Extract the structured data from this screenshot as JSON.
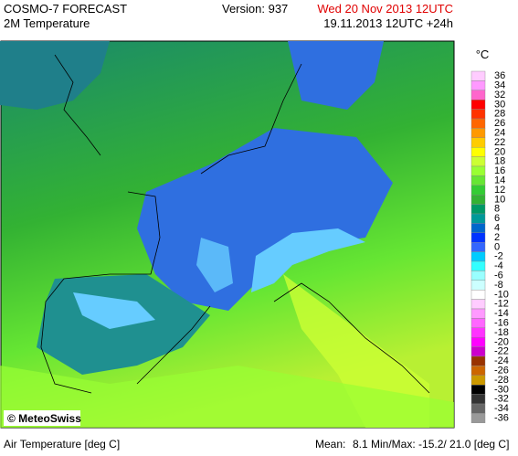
{
  "header": {
    "title": "COSMO-7 FORECAST",
    "subtitle": "2M Temperature",
    "version": "Version: 937",
    "valid_time": "Wed 20 Nov 2013 12UTC",
    "run_time": "19.11.2013 12UTC +24h"
  },
  "legend": {
    "unit": "°C",
    "entries": [
      {
        "value": 36,
        "color": "#ffccff"
      },
      {
        "value": 34,
        "color": "#ff99ff"
      },
      {
        "value": 32,
        "color": "#ff66cc"
      },
      {
        "value": 30,
        "color": "#ff0000"
      },
      {
        "value": 28,
        "color": "#ff3300"
      },
      {
        "value": 26,
        "color": "#ff6600"
      },
      {
        "value": 24,
        "color": "#ff9900"
      },
      {
        "value": 22,
        "color": "#ffcc00"
      },
      {
        "value": 20,
        "color": "#ffff00"
      },
      {
        "value": 18,
        "color": "#ccff33"
      },
      {
        "value": 16,
        "color": "#99ff33"
      },
      {
        "value": 14,
        "color": "#66e633"
      },
      {
        "value": 12,
        "color": "#33cc33"
      },
      {
        "value": 10,
        "color": "#33b233"
      },
      {
        "value": 8,
        "color": "#009966"
      },
      {
        "value": 6,
        "color": "#009999"
      },
      {
        "value": 4,
        "color": "#0066cc"
      },
      {
        "value": 2,
        "color": "#0033ff"
      },
      {
        "value": 0,
        "color": "#3366ff"
      },
      {
        "value": -2,
        "color": "#00ccff"
      },
      {
        "value": -4,
        "color": "#33ffff"
      },
      {
        "value": -6,
        "color": "#99ffff"
      },
      {
        "value": -8,
        "color": "#ccffff"
      },
      {
        "value": -10,
        "color": "#ffffff"
      },
      {
        "value": -12,
        "color": "#ffccff"
      },
      {
        "value": -14,
        "color": "#ff99ff"
      },
      {
        "value": -16,
        "color": "#ff66ff"
      },
      {
        "value": -18,
        "color": "#ff33ff"
      },
      {
        "value": -20,
        "color": "#ff00ff"
      },
      {
        "value": -22,
        "color": "#cc00cc"
      },
      {
        "value": -24,
        "color": "#993300"
      },
      {
        "value": -26,
        "color": "#cc6600"
      },
      {
        "value": -28,
        "color": "#cc9900"
      },
      {
        "value": -30,
        "color": "#000000"
      },
      {
        "value": -32,
        "color": "#333333"
      },
      {
        "value": -34,
        "color": "#666666"
      },
      {
        "value": -36,
        "color": "#999999"
      }
    ]
  },
  "map": {
    "credit": "© MeteoSwiss"
  },
  "footer": {
    "variable": "Air Temperature [deg C]",
    "mean_label": "Mean:",
    "stats": "8.1 Min/Max: -15.2/ 21.0 [deg C]"
  }
}
